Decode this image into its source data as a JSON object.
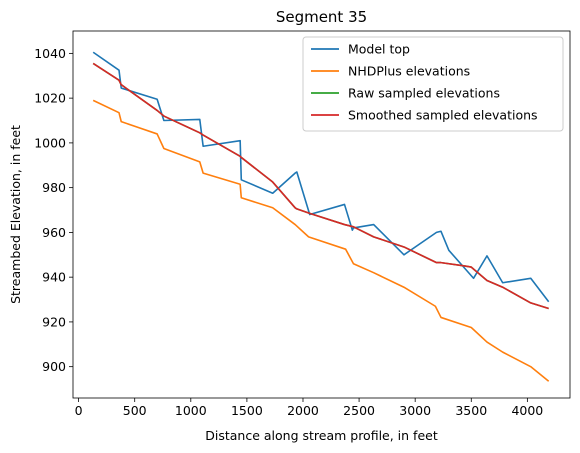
{
  "chart_data": {
    "type": "line",
    "title": "Segment 35",
    "xlabel": "Distance along stream profile, in feet",
    "ylabel": "Streambed Elevation, in feet",
    "xlim": [
      -50,
      4380
    ],
    "ylim": [
      886,
      1050
    ],
    "xticks": [
      0,
      500,
      1000,
      1500,
      2000,
      2500,
      3000,
      3500,
      4000
    ],
    "yticks": [
      900,
      920,
      940,
      960,
      980,
      1000,
      1020,
      1040
    ],
    "grid": false,
    "legend_position": "top-right",
    "series": [
      {
        "name": "Model top",
        "color": "#1f77b4",
        "x": [
          130,
          360,
          380,
          700,
          760,
          1080,
          1110,
          1440,
          1450,
          1730,
          1930,
          1945,
          2060,
          2370,
          2440,
          2450,
          2630,
          2900,
          3190,
          3230,
          3300,
          3520,
          3640,
          3780,
          4030,
          4190
        ],
        "y": [
          1040.5,
          1032.5,
          1024.5,
          1019.5,
          1010,
          1010.5,
          998.5,
          1001,
          983.5,
          977.5,
          986.5,
          987,
          968,
          972.5,
          961,
          962,
          963.5,
          950,
          960,
          960.5,
          952,
          939.5,
          949.5,
          937.5,
          939.5,
          929
        ]
      },
      {
        "name": "NHDPlus elevations",
        "color": "#ff7f0e",
        "x": [
          130,
          360,
          380,
          700,
          760,
          1080,
          1110,
          1440,
          1450,
          1730,
          1930,
          2050,
          2380,
          2450,
          2630,
          2900,
          3180,
          3230,
          3500,
          3640,
          3780,
          4030,
          4190
        ],
        "y": [
          1019,
          1013.5,
          1009.5,
          1004,
          997.5,
          991.5,
          986.5,
          981.5,
          975.5,
          971,
          963.5,
          958,
          952.5,
          946,
          942,
          935.5,
          927,
          922,
          917.5,
          911,
          906.5,
          900,
          893.5
        ]
      },
      {
        "name": "Raw sampled elevations",
        "color": "#2ca02c",
        "x": [
          130,
          360,
          380,
          700,
          760,
          1080,
          1110,
          1440,
          1450,
          1730,
          1930,
          1945,
          2060,
          2370,
          2450,
          2630,
          2900,
          3190,
          3230,
          3440,
          3500,
          3640,
          3780,
          4030,
          4190
        ],
        "y": [
          1035.5,
          1028,
          1026,
          1014.5,
          1012,
          1004.5,
          1003.5,
          994,
          993.5,
          982.5,
          971,
          970.5,
          968.5,
          963.5,
          962.5,
          958,
          953.5,
          946.5,
          946.5,
          945,
          944.5,
          938.5,
          935.5,
          928.5,
          926
        ]
      },
      {
        "name": "Smoothed sampled elevations",
        "color": "#d62728",
        "x": [
          130,
          360,
          380,
          700,
          760,
          1080,
          1110,
          1440,
          1450,
          1730,
          1930,
          1945,
          2060,
          2370,
          2450,
          2630,
          2900,
          3190,
          3230,
          3440,
          3500,
          3640,
          3780,
          4030,
          4190
        ],
        "y": [
          1035.5,
          1028,
          1026,
          1014.5,
          1012,
          1004.5,
          1003.5,
          994,
          993.5,
          982.5,
          971,
          970.5,
          968.5,
          963.5,
          962.5,
          958,
          953.5,
          946.5,
          946.5,
          945,
          944.5,
          938.5,
          935.5,
          928.5,
          926
        ]
      }
    ]
  }
}
